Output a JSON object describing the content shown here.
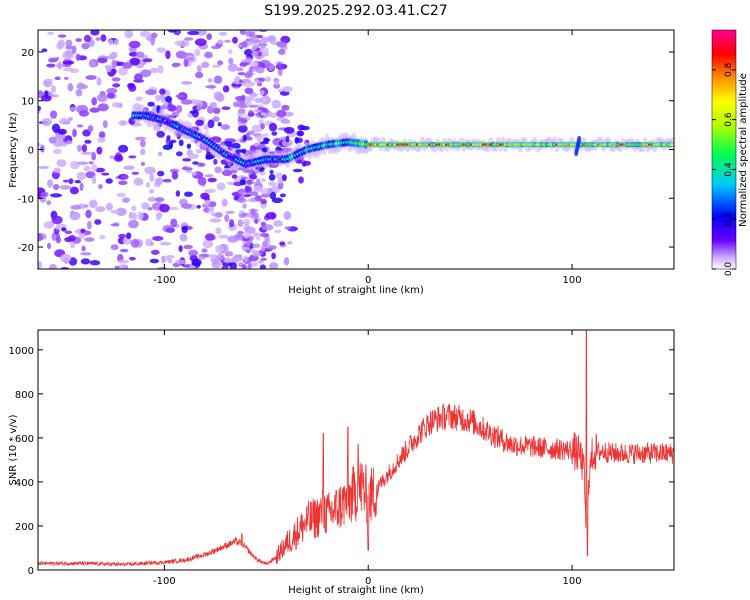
{
  "title": "S199.2025.292.03.41.C27",
  "chart_data": [
    {
      "type": "heatmap",
      "xlabel": "Height of straight line (km)",
      "ylabel": "Frequency (Hz)",
      "xlim": [
        -162,
        150
      ],
      "ylim": [
        -24.5,
        24.5
      ],
      "x_ticks": [
        -100,
        0,
        100
      ],
      "y_ticks": [
        -20,
        -10,
        0,
        10,
        20
      ],
      "ridge": {
        "x": [
          -110,
          -100,
          -90,
          -80,
          -70,
          -60,
          -50,
          -40,
          -30,
          -20,
          -10,
          0,
          10,
          20,
          50,
          100,
          150
        ],
        "y": [
          7,
          6,
          4,
          2,
          -1,
          -3,
          -2,
          -2,
          0,
          1,
          1.5,
          1,
          1,
          1,
          1,
          1,
          1
        ]
      },
      "colorbar": {
        "label": "Normalized spectral amplitude",
        "range": [
          0.0,
          0.96
        ],
        "ticks": [
          "0.0",
          "0.2",
          "0.4",
          "0.6",
          "0.8"
        ],
        "tick_values": [
          0.0,
          0.2,
          0.4,
          0.6,
          0.8
        ]
      }
    },
    {
      "type": "line",
      "xlabel": "Height of straight line (km)",
      "ylabel": "SNR (10 * v/v)",
      "xlim": [
        -162,
        150
      ],
      "ylim": [
        0,
        1090
      ],
      "x_ticks": [
        -100,
        0,
        100
      ],
      "y_ticks": [
        0,
        200,
        400,
        600,
        800,
        1000
      ],
      "series": [
        {
          "name": "SNR",
          "color": "#ee3333",
          "x": [
            -162,
            -140,
            -120,
            -100,
            -90,
            -80,
            -75,
            -70,
            -65,
            -62,
            -58,
            -55,
            -50,
            -45,
            -40,
            -35,
            -30,
            -25,
            -22,
            -20,
            -15,
            -10,
            -5,
            -3,
            0,
            5,
            10,
            15,
            20,
            25,
            30,
            35,
            40,
            45,
            50,
            55,
            60,
            70,
            80,
            90,
            100,
            104,
            106,
            107,
            108,
            110,
            115,
            120,
            130,
            140,
            150
          ],
          "y": [
            30,
            30,
            25,
            35,
            45,
            70,
            90,
            110,
            130,
            120,
            80,
            50,
            25,
            60,
            120,
            170,
            220,
            240,
            270,
            250,
            280,
            320,
            360,
            380,
            320,
            380,
            440,
            500,
            560,
            620,
            670,
            690,
            700,
            690,
            680,
            650,
            620,
            570,
            560,
            550,
            545,
            520,
            440,
            130,
            400,
            530,
            540,
            530,
            530,
            530,
            530
          ]
        }
      ],
      "spikes": [
        {
          "x": -62,
          "y": 165
        },
        {
          "x": -22,
          "y": 620
        },
        {
          "x": -10,
          "y": 650
        },
        {
          "x": -5,
          "y": 570
        },
        {
          "x": 0,
          "y": 90
        },
        {
          "x": 107,
          "y": 1090
        },
        {
          "x": 107.5,
          "y": 65
        }
      ]
    }
  ]
}
